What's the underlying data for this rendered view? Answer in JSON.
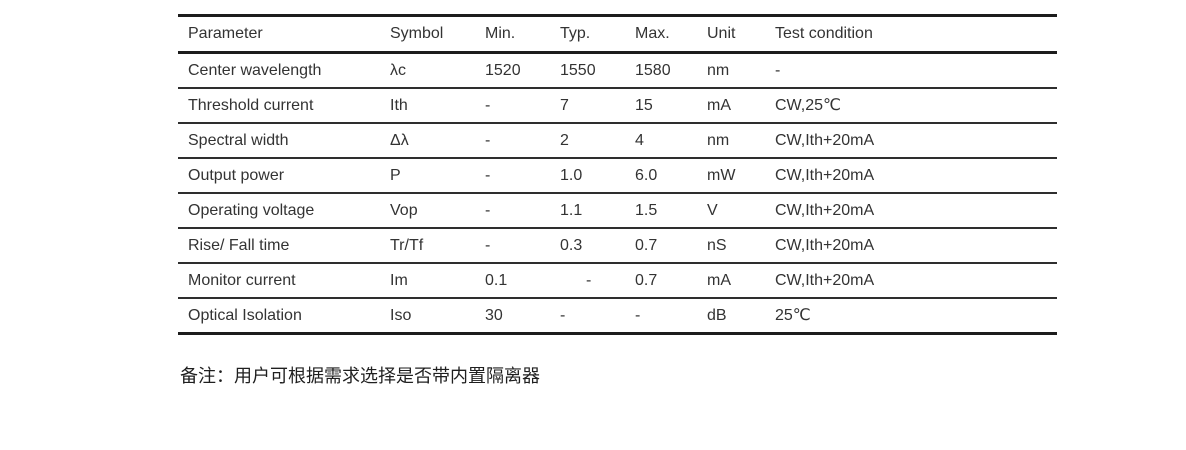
{
  "table": {
    "columns": [
      "Parameter",
      "Symbol",
      "Min.",
      "Typ.",
      "Max.",
      "Unit",
      "Test condition"
    ],
    "rows": [
      [
        "Center wavelength",
        "λc",
        "1520",
        "1550",
        "1580",
        "nm",
        "-"
      ],
      [
        "Threshold current",
        "Ith",
        "-",
        "7",
        "15",
        "mA",
        "CW,25℃"
      ],
      [
        "Spectral width",
        "Δλ",
        "-",
        "2",
        "4",
        "nm",
        "CW,Ith+20mA"
      ],
      [
        "Output power",
        "P",
        "-",
        "1.0",
        "6.0",
        "mW",
        "CW,Ith+20mA"
      ],
      [
        "Operating voltage",
        "Vop",
        "-",
        "1.1",
        "1.5",
        "V",
        "CW,Ith+20mA"
      ],
      [
        "Rise/ Fall time",
        "Tr/Tf",
        "-",
        "0.3",
        "0.7",
        "nS",
        "CW,Ith+20mA"
      ],
      [
        "Monitor current",
        "Im",
        "0.1",
        "-",
        "0.7",
        "mA",
        "CW,Ith+20mA"
      ],
      [
        "Optical Isolation",
        "Iso",
        "30",
        "-",
        "-",
        "dB",
        "25℃"
      ]
    ]
  },
  "note": {
    "text": "备注：用户可根据需求选择是否带内置隔离器"
  },
  "colors": {
    "background": "#ffffff",
    "text": "#333333",
    "rule": "#1c1c1c"
  }
}
